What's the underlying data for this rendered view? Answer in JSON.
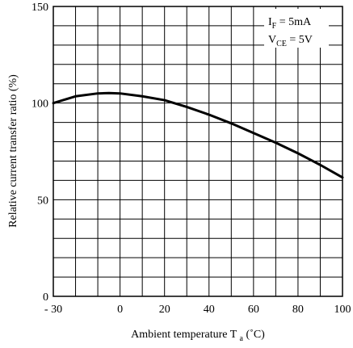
{
  "chart_data": {
    "type": "line",
    "title": "",
    "xlabel": "Ambient temperature T",
    "xlabel_subscript": "a",
    "xlabel_unit": "(˚C)",
    "ylabel": "Relative current transfer ratio (%)",
    "xlim": [
      -30,
      100
    ],
    "ylim": [
      0,
      150
    ],
    "x_ticks": [
      -30,
      0,
      20,
      40,
      60,
      80,
      100
    ],
    "x_tick_labels": [
      "- 30",
      "0",
      "20",
      "40",
      "60",
      "80",
      "100"
    ],
    "y_ticks": [
      0,
      50,
      100,
      150
    ],
    "y_tick_labels": [
      "0",
      "50",
      "100",
      "150"
    ],
    "grid": true,
    "x_grid_step": 10,
    "y_grid_step": 10,
    "annotations": [
      {
        "base": "I",
        "sub": "F",
        "rest": " = 5mA"
      },
      {
        "base": "V",
        "sub": "CE",
        "rest": " =  5V"
      }
    ],
    "annotation_placement": "top-right",
    "series": [
      {
        "color": "#000000",
        "x": [
          -30,
          -20,
          -10,
          -5,
          0,
          10,
          20,
          30,
          40,
          50,
          60,
          70,
          80,
          90,
          100
        ],
        "y": [
          100,
          103.5,
          105,
          105.2,
          105,
          103.5,
          101.5,
          98,
          94,
          89.5,
          84.5,
          79.5,
          74,
          68,
          61.5
        ]
      }
    ]
  }
}
